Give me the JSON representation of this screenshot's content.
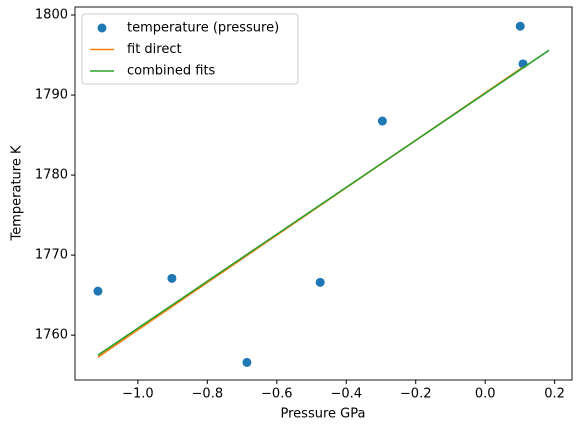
{
  "chart_data": {
    "type": "scatter",
    "xlabel": "Pressure GPa",
    "ylabel": "Temperature K",
    "xlim": [
      -1.181,
      0.25
    ],
    "xticks": [
      {
        "value": -1.0,
        "label": "−1.0"
      },
      {
        "value": -0.8,
        "label": "−0.8"
      },
      {
        "value": -0.6,
        "label": "−0.6"
      },
      {
        "value": -0.4,
        "label": "−0.4"
      },
      {
        "value": -0.2,
        "label": "−0.2"
      },
      {
        "value": 0.0,
        "label": "0.0"
      },
      0.2
    ],
    "ylim": [
      1754.4,
      1801.0
    ],
    "yticks": [
      1760,
      1770,
      1780,
      1790,
      1800
    ],
    "legend": "upper left",
    "series": [
      {
        "name": "temperature (pressure)",
        "style": "marker",
        "color": "#1f77b4",
        "x": [
          -1.115,
          -0.902,
          -0.686,
          -0.475,
          -0.296,
          0.101,
          0.109
        ],
        "values": [
          1765.5,
          1767.1,
          1756.6,
          1766.6,
          1786.75,
          1798.6,
          1793.9
        ]
      },
      {
        "name": "fit direct",
        "style": "line",
        "color": "#ff7f0e",
        "x": [
          -1.115,
          0.109
        ],
        "values": [
          1757.25,
          1793.5
        ]
      },
      {
        "name": "combined fits",
        "style": "line",
        "color": "#2ca02c",
        "x": [
          -1.115,
          0.184
        ],
        "values": [
          1757.5,
          1795.6
        ]
      }
    ]
  }
}
